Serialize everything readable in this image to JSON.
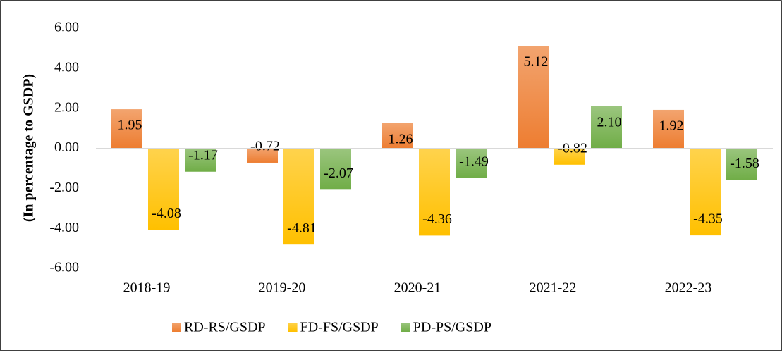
{
  "chart_data": {
    "type": "bar",
    "y_axis_label": "(In percentage to GSDP)",
    "categories": [
      "2018-19",
      "2019-20",
      "2020-21",
      "2021-22",
      "2022-23"
    ],
    "series": [
      {
        "name": "RD-RS/GSDP",
        "color": "#ed7d31",
        "values": [
          1.95,
          -0.72,
          1.26,
          5.12,
          1.92
        ],
        "value_labels": [
          "1.95",
          "-0.72",
          "1.26",
          "5.12",
          "1.92"
        ]
      },
      {
        "name": "FD-FS/GSDP",
        "color": "#ffc000",
        "values": [
          -4.08,
          -4.81,
          -4.36,
          -0.82,
          -4.35
        ],
        "value_labels": [
          "-4.08",
          "-4.81",
          "-4.36",
          "-0.82",
          "-4.35"
        ]
      },
      {
        "name": "PD-PS/GSDP",
        "color": "#70ad47",
        "values": [
          -1.17,
          -2.07,
          -1.49,
          2.1,
          -1.58
        ],
        "value_labels": [
          "-1.17",
          "-2.07",
          "-1.49",
          "2.10",
          "-1.58"
        ]
      }
    ],
    "ylim": [
      -6,
      6
    ],
    "yticks": [
      {
        "value": -6,
        "label": "-6.00"
      },
      {
        "value": -4,
        "label": "-4.00"
      },
      {
        "value": -2,
        "label": "-2.00"
      },
      {
        "value": 0,
        "label": "0.00"
      },
      {
        "value": 2,
        "label": "2.00"
      },
      {
        "value": 4,
        "label": "4.00"
      },
      {
        "value": 6,
        "label": "6.00"
      }
    ],
    "legend": "bottom"
  }
}
